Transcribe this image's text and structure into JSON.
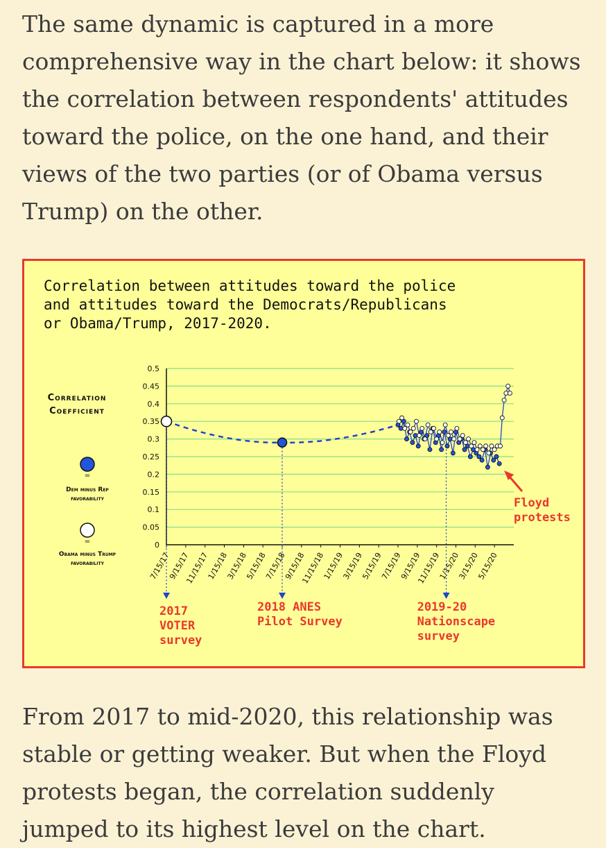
{
  "article": {
    "para1": "The same dynamic is captured in a more comprehensive way in the chart below: it shows the correlation between respondents' attitudes toward the police, on the one hand, and their views of the two parties (or of Obama versus Trump) on the other.",
    "para2": "From 2017 to mid-2020, this relationship was stable or getting weaker. But when the Floyd protests began, the correlation suddenly jumped to its highest level on the chart."
  },
  "chart_data": {
    "type": "line",
    "title_lines": [
      "Correlation between attitudes toward the police",
      "and attitudes toward the Democrats/Republicans",
      "or Obama/Trump, 2017-2020."
    ],
    "ylabel_lines": [
      "Correlation",
      "Coefficient"
    ],
    "ylim": [
      0,
      0.5
    ],
    "yticks": [
      "0",
      "0.05",
      "0.1",
      "0.15",
      "0.2",
      "0.25",
      "0.3",
      "0.35",
      "0.4",
      "0.45",
      "0.5"
    ],
    "xticks": [
      "7/15/17",
      "9/15/17",
      "11/15/17",
      "1/15/18",
      "3/15/18",
      "5/15/18",
      "7/15/18",
      "9/15/18",
      "11/15/18",
      "1/15/19",
      "3/15/19",
      "5/15/19",
      "7/15/19",
      "9/15/19",
      "11/15/19",
      "1/15/20",
      "3/15/20",
      "5/15/20"
    ],
    "legend": [
      {
        "label_lines": [
          "Dem minus Rep",
          "favorability"
        ],
        "fill": "#2255dd"
      },
      {
        "label_lines": [
          "Obama minus Trump",
          "favorability"
        ],
        "fill": "#ffffff"
      }
    ],
    "series": [
      {
        "name": "2017 VOTER survey (Obama minus Trump)",
        "x": [
          0
        ],
        "values": [
          0.35
        ],
        "fill": "#ffffff"
      },
      {
        "name": "2018 ANES Pilot Survey (Dem minus Rep)",
        "x": [
          12
        ],
        "values": [
          0.29
        ],
        "fill": "#2255dd"
      },
      {
        "name": "Nationscape Dem minus Rep",
        "fill": "#2255dd",
        "x": [
          24.0,
          24.3,
          24.6,
          24.9,
          25.2,
          25.5,
          25.8,
          26.1,
          26.4,
          26.7,
          27.0,
          27.3,
          27.6,
          27.9,
          28.2,
          28.5,
          28.8,
          29.1,
          29.4,
          29.7,
          30.0,
          30.3,
          30.6,
          30.9,
          31.2,
          31.5,
          31.8,
          32.1,
          32.4,
          32.7,
          33.0,
          33.3,
          33.6,
          33.9,
          34.2,
          34.5
        ],
        "values": [
          0.34,
          0.33,
          0.35,
          0.3,
          0.32,
          0.29,
          0.31,
          0.28,
          0.32,
          0.3,
          0.31,
          0.27,
          0.33,
          0.29,
          0.31,
          0.27,
          0.32,
          0.28,
          0.3,
          0.26,
          0.32,
          0.29,
          0.3,
          0.27,
          0.28,
          0.25,
          0.27,
          0.26,
          0.25,
          0.24,
          0.27,
          0.22,
          0.26,
          0.24,
          0.25,
          0.23
        ]
      },
      {
        "name": "Nationscape Obama minus Trump",
        "fill": "#ffffff",
        "x": [
          24.1,
          24.4,
          24.7,
          25.0,
          25.3,
          25.6,
          25.9,
          26.2,
          26.5,
          26.8,
          27.1,
          27.4,
          27.7,
          28.0,
          28.3,
          28.6,
          28.9,
          29.2,
          29.5,
          29.8,
          30.1,
          30.4,
          30.7,
          31.0,
          31.3,
          31.6,
          31.9,
          32.2,
          32.5,
          32.8,
          33.1,
          33.4,
          33.7,
          34.0,
          34.3,
          34.6,
          34.8,
          35.0,
          35.2,
          35.4,
          35.6
        ],
        "values": [
          0.35,
          0.36,
          0.33,
          0.34,
          0.32,
          0.33,
          0.35,
          0.31,
          0.33,
          0.3,
          0.34,
          0.32,
          0.33,
          0.3,
          0.32,
          0.29,
          0.34,
          0.31,
          0.32,
          0.3,
          0.33,
          0.3,
          0.31,
          0.29,
          0.3,
          0.28,
          0.29,
          0.27,
          0.28,
          0.27,
          0.28,
          0.26,
          0.28,
          0.27,
          0.28,
          0.28,
          0.36,
          0.41,
          0.43,
          0.45,
          0.43
        ]
      }
    ],
    "annotations": [
      {
        "lines": [
          "2017",
          "VOTER",
          "survey"
        ],
        "at_x": 0
      },
      {
        "lines": [
          "2018 ANES",
          "Pilot Survey"
        ],
        "at_x": 12
      },
      {
        "lines": [
          "2019-20",
          "Nationscape",
          "survey"
        ],
        "at_x": 29
      },
      {
        "lines": [
          "Floyd",
          "protests"
        ],
        "at_x": 35
      }
    ],
    "colors": {
      "annotation": "#e8392c",
      "line": "#2244cc",
      "grid": "#88dd88",
      "frame": "#e8392c",
      "background": "#ffff99"
    }
  }
}
